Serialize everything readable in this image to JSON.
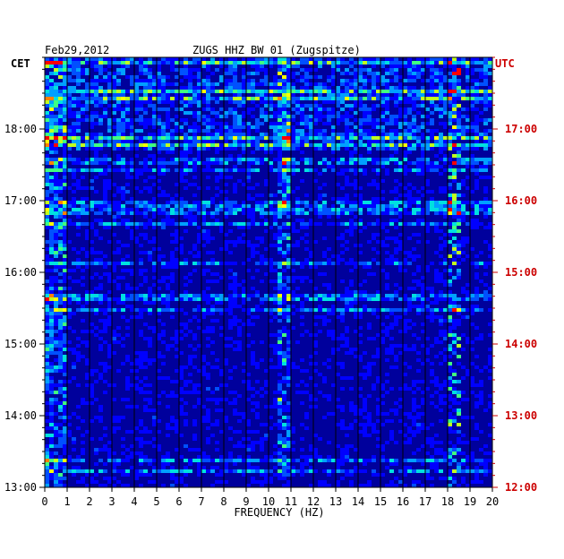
{
  "header": {
    "date": "Feb29,2012",
    "station": "ZUGS HHZ BW 01 (Zugspitze)",
    "left_zone": "CET",
    "right_zone": "UTC"
  },
  "colors": {
    "background": "#ffffff",
    "cet_labels": "#000000",
    "utc_labels": "#cc0000",
    "grid": "#000000",
    "spectrogram_low": "#00009c",
    "spectrogram_high": "#ff0000"
  },
  "chart_data": {
    "type": "heatmap",
    "title": "ZUGS HHZ BW 01 (Zugspitze)",
    "date": "Feb29,2012",
    "xlabel": "FREQUENCY (HZ)",
    "xlim": [
      0,
      20
    ],
    "x_ticks": [
      "0",
      "1",
      "2",
      "3",
      "4",
      "5",
      "6",
      "7",
      "8",
      "9",
      "10",
      "11",
      "12",
      "13",
      "14",
      "15",
      "16",
      "17",
      "18",
      "19",
      "20"
    ],
    "y_left_label": "CET",
    "y_right_label": "UTC",
    "y_left_ticks": [
      "18:00",
      "17:00",
      "16:00",
      "15:00",
      "14:00",
      "13:00"
    ],
    "y_right_ticks": [
      "17:00",
      "16:00",
      "15:00",
      "14:00",
      "13:00",
      "12:00"
    ],
    "time_range_cet": [
      "13:00",
      "19:00"
    ],
    "grid": true,
    "colormap": [
      "#00009c",
      "#0000ff",
      "#0050ff",
      "#00a0ff",
      "#00e0e0",
      "#40ff80",
      "#c0ff20",
      "#ffff00",
      "#ff8000",
      "#ff0000"
    ]
  }
}
